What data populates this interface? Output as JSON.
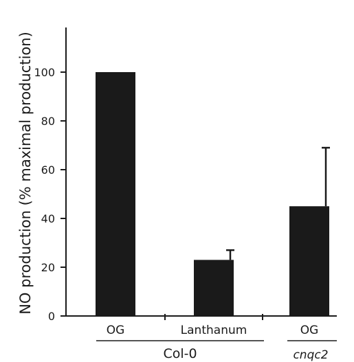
{
  "chart_data": {
    "type": "bar",
    "title": "",
    "xlabel": "",
    "ylabel": "NO production (% maximal production)",
    "ylim": [
      0,
      120
    ],
    "yticks": [
      0,
      20,
      40,
      60,
      80,
      100
    ],
    "categories": [
      "OG",
      "Lanthanum",
      "OG"
    ],
    "values": [
      100,
      23,
      45
    ],
    "error_upper": [
      0,
      4,
      24
    ],
    "groups": [
      {
        "label": "Col-0",
        "italic": false,
        "categories": [
          0,
          1
        ]
      },
      {
        "label": "cnqc2",
        "italic": true,
        "categories": [
          2
        ]
      }
    ],
    "bar_color": "#1a1a1a",
    "grid": false,
    "legend": "none"
  }
}
